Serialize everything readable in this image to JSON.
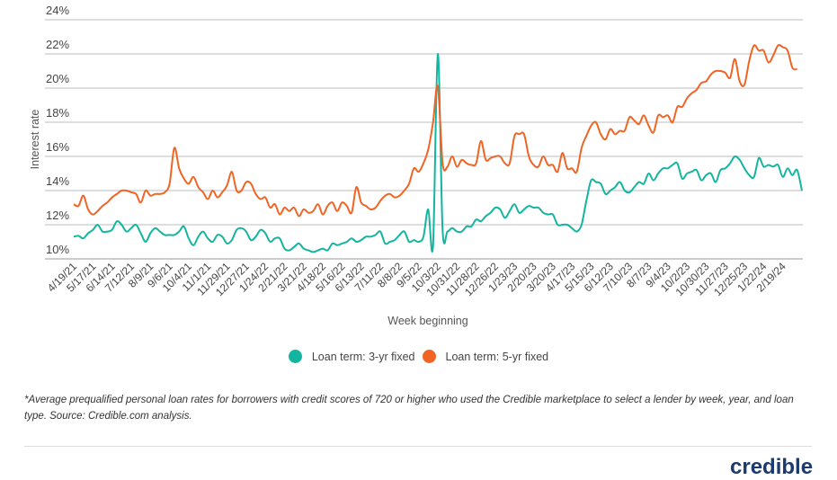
{
  "chart_data": {
    "type": "line",
    "title": "",
    "xlabel": "Week beginning",
    "ylabel": "Interest rate",
    "ylim": [
      10,
      24
    ],
    "yticks": [
      "10%",
      "12%",
      "14%",
      "16%",
      "18%",
      "20%",
      "22%",
      "24%"
    ],
    "ytick_values": [
      10,
      12,
      14,
      16,
      18,
      20,
      22,
      24
    ],
    "grid": true,
    "legend_position": "bottom",
    "x_start": "4/19/21",
    "x_interval": "weekly",
    "xtick_labels": [
      "4/19/21",
      "5/17/21",
      "6/14/21",
      "7/12/21",
      "8/9/21",
      "9/6/21",
      "10/4/21",
      "11/1/21",
      "11/29/21",
      "12/27/21",
      "1/24/22",
      "2/21/22",
      "3/21/22",
      "4/18/22",
      "5/16/22",
      "6/13/22",
      "7/11/22",
      "8/8/22",
      "9/5/22",
      "10/3/22",
      "10/31/22",
      "11/28/22",
      "12/26/22",
      "1/23/23",
      "2/20/23",
      "3/20/23",
      "4/17/23",
      "5/15/23",
      "6/12/23",
      "7/10/23",
      "8/7/23",
      "9/4/23",
      "10/2/23",
      "10/30/23",
      "11/27/23",
      "12/25/23",
      "1/22/24",
      "2/19/24"
    ],
    "series": [
      {
        "name": "Loan term: 3-yr fixed",
        "color": "#13b5a0",
        "values": [
          11.3,
          11.35,
          11.2,
          11.5,
          11.7,
          12.0,
          11.6,
          11.6,
          11.7,
          12.2,
          12.0,
          11.6,
          11.8,
          12.0,
          11.5,
          11.0,
          11.5,
          11.8,
          11.6,
          11.4,
          11.4,
          11.4,
          11.6,
          11.9,
          11.2,
          10.8,
          11.3,
          11.6,
          11.2,
          11.0,
          11.4,
          11.3,
          10.9,
          11.1,
          11.7,
          11.8,
          11.6,
          11.1,
          11.3,
          11.7,
          11.5,
          11.0,
          11.2,
          11.2,
          10.6,
          10.5,
          10.7,
          10.9,
          10.6,
          10.5,
          10.4,
          10.5,
          10.6,
          10.5,
          10.9,
          10.8,
          10.9,
          11.0,
          11.2,
          11.0,
          11.1,
          11.3,
          11.3,
          11.4,
          11.6,
          10.9,
          11.0,
          11.1,
          11.4,
          11.6,
          11.0,
          11.1,
          11.0,
          11.3,
          12.9,
          10.8,
          22.0,
          11.7,
          11.6,
          11.8,
          11.6,
          11.6,
          11.9,
          11.9,
          12.3,
          12.2,
          12.5,
          12.7,
          13.0,
          12.9,
          12.4,
          12.8,
          13.2,
          12.7,
          12.9,
          13.1,
          13.0,
          13.0,
          12.7,
          12.6,
          12.6,
          12.0,
          12.0,
          12.0,
          11.8,
          11.6,
          12.0,
          13.4,
          14.6,
          14.5,
          14.4,
          13.8,
          14.0,
          14.2,
          14.5,
          14.0,
          13.9,
          14.2,
          14.5,
          14.4,
          15.0,
          14.6,
          15.0,
          15.3,
          15.3,
          15.5,
          15.6,
          14.7,
          15.0,
          15.1,
          15.2,
          14.6,
          14.9,
          15.0,
          14.5,
          15.2,
          15.3,
          15.6,
          16.0,
          15.8,
          15.3,
          14.9,
          14.8,
          15.9,
          15.4,
          15.5,
          15.4,
          15.5,
          14.8,
          15.3,
          14.9,
          15.2,
          14.0
        ],
        "legend_label": "Loan term: 3-yr fixed"
      },
      {
        "name": "Loan term: 5-yr fixed",
        "color": "#f06424",
        "values": [
          13.2,
          13.1,
          13.7,
          12.9,
          12.6,
          12.8,
          13.1,
          13.3,
          13.6,
          13.8,
          14.0,
          14.0,
          13.9,
          13.8,
          13.3,
          14.0,
          13.7,
          13.8,
          13.8,
          13.9,
          14.4,
          16.5,
          15.3,
          14.7,
          14.4,
          14.8,
          14.2,
          13.9,
          13.5,
          14.0,
          13.6,
          13.9,
          14.3,
          15.1,
          14.0,
          14.0,
          14.5,
          14.4,
          13.8,
          13.5,
          13.6,
          13.0,
          13.2,
          12.6,
          13.0,
          12.8,
          13.0,
          12.5,
          12.9,
          12.7,
          12.8,
          13.2,
          12.6,
          13.1,
          13.3,
          12.8,
          13.3,
          13.1,
          12.7,
          14.2,
          13.3,
          13.1,
          12.9,
          13.0,
          13.4,
          13.7,
          13.8,
          13.6,
          13.7,
          14.0,
          14.4,
          15.3,
          15.1,
          15.6,
          16.4,
          18.0,
          20.1,
          15.6,
          15.4,
          16.0,
          15.4,
          15.8,
          15.6,
          15.5,
          15.6,
          16.9,
          15.8,
          15.9,
          16.0,
          16.0,
          15.6,
          15.6,
          17.2,
          17.3,
          17.3,
          16.0,
          15.5,
          15.4,
          16.0,
          15.5,
          15.5,
          15.1,
          16.2,
          15.3,
          15.3,
          15.1,
          16.5,
          17.2,
          17.8,
          18.0,
          17.3,
          17.0,
          17.6,
          17.3,
          17.5,
          17.5,
          18.3,
          18.1,
          17.9,
          18.4,
          17.8,
          17.4,
          18.4,
          18.3,
          18.4,
          18.0,
          18.9,
          18.9,
          19.4,
          19.7,
          19.9,
          20.3,
          20.4,
          20.8,
          21.0,
          21.0,
          20.9,
          20.6,
          21.7,
          20.4,
          20.2,
          21.6,
          22.5,
          22.2,
          22.2,
          21.5,
          21.9,
          22.5,
          22.4,
          22.2,
          21.2,
          21.1
        ],
        "legend_label": "Loan term: 5-yr fixed"
      }
    ]
  },
  "footnote": "*Average prequalified personal loan rates for borrowers with credit scores of 720 or higher who used the Credible marketplace to select a lender by week, year, and loan type. Source: Credible.com analysis.",
  "logo_text": "credible",
  "colors": {
    "grid": "#bdbdbd",
    "text": "#444444"
  }
}
